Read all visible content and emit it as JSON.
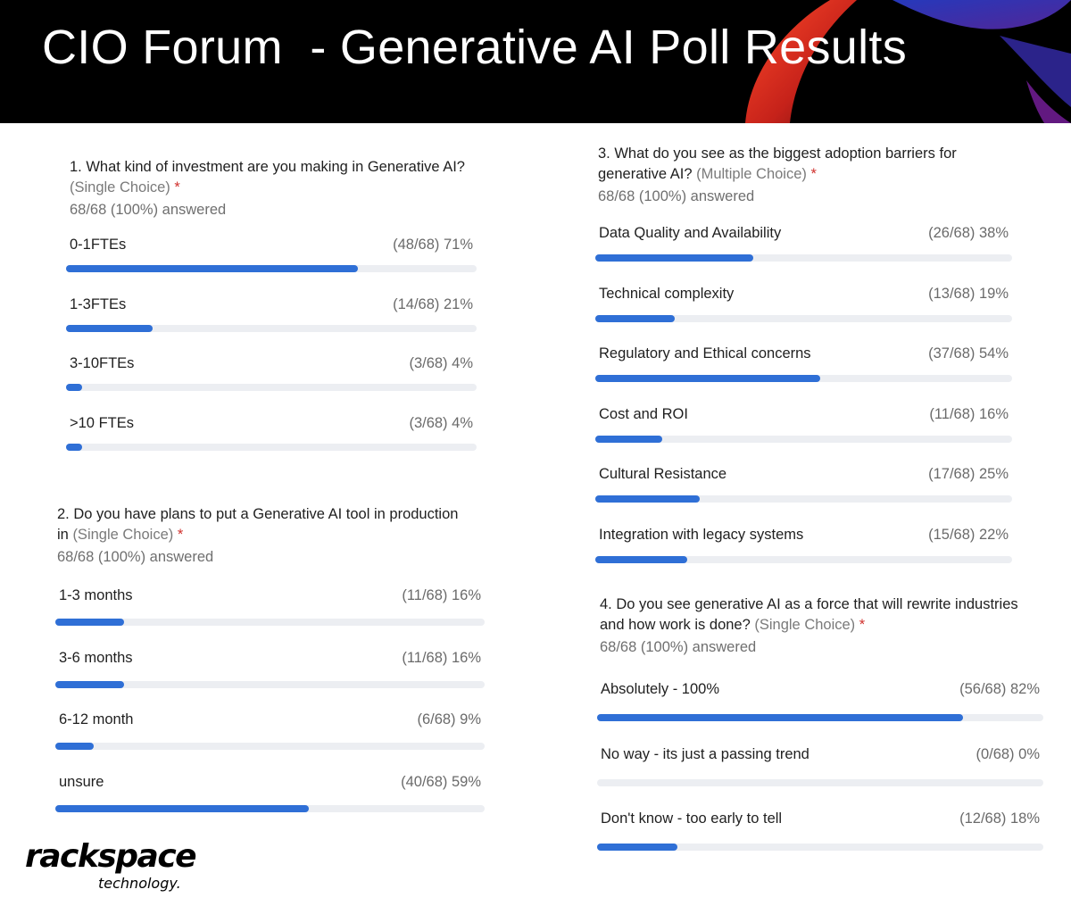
{
  "header": {
    "title": "CIO Forum  - Generative AI Poll Results"
  },
  "colors": {
    "bar_fill": "#2f6fd6",
    "bar_track": "#eceef2",
    "required_star": "#d0312d",
    "header_bg": "#000000"
  },
  "questions": [
    {
      "text": "1. What kind of investment are you making in Generative AI?",
      "type": "(Single Choice)",
      "required_mark": "*",
      "answered": "68/68 (100%) answered",
      "options": [
        {
          "label": "0-1FTEs",
          "result": "(48/68) 71%",
          "percent": 71
        },
        {
          "label": "1-3FTEs",
          "result": "(14/68) 21%",
          "percent": 21
        },
        {
          "label": "3-10FTEs",
          "result": "(3/68) 4%",
          "percent": 4
        },
        {
          "label": ">10 FTEs",
          "result": "(3/68) 4%",
          "percent": 4
        }
      ]
    },
    {
      "text": "2. Do you have plans to put a Generative AI tool in production in",
      "type": "(Single Choice)",
      "required_mark": "*",
      "answered": "68/68 (100%) answered",
      "options": [
        {
          "label": "1-3 months",
          "result": "(11/68) 16%",
          "percent": 16
        },
        {
          "label": "3-6 months",
          "result": "(11/68) 16%",
          "percent": 16
        },
        {
          "label": "6-12 month",
          "result": "(6/68) 9%",
          "percent": 9
        },
        {
          "label": "unsure",
          "result": "(40/68) 59%",
          "percent": 59
        }
      ]
    },
    {
      "text": "3. What do you see as the biggest adoption barriers for generative AI?",
      "type": "(Multiple Choice)",
      "required_mark": "*",
      "answered": "68/68 (100%) answered",
      "options": [
        {
          "label": "Data Quality and Availability",
          "result": "(26/68) 38%",
          "percent": 38
        },
        {
          "label": "Technical complexity",
          "result": "(13/68) 19%",
          "percent": 19
        },
        {
          "label": "Regulatory and Ethical concerns",
          "result": "(37/68) 54%",
          "percent": 54
        },
        {
          "label": "Cost and ROI",
          "result": "(11/68) 16%",
          "percent": 16
        },
        {
          "label": "Cultural Resistance",
          "result": "(17/68) 25%",
          "percent": 25
        },
        {
          "label": "Integration with legacy systems",
          "result": "(15/68) 22%",
          "percent": 22
        }
      ]
    },
    {
      "text": "4. Do you see generative AI as a force that will rewrite industries and how work is done?",
      "type": "(Single Choice)",
      "required_mark": "*",
      "answered": "68/68 (100%) answered",
      "options": [
        {
          "label": "Absolutely - 100%",
          "result": "(56/68) 82%",
          "percent": 82
        },
        {
          "label": "No way - its just a passing trend",
          "result": "(0/68) 0%",
          "percent": 0
        },
        {
          "label": "Don't know - too early to tell",
          "result": "(12/68) 18%",
          "percent": 18
        }
      ]
    }
  ],
  "logo": {
    "name": "rackspace",
    "sub": "technology."
  }
}
